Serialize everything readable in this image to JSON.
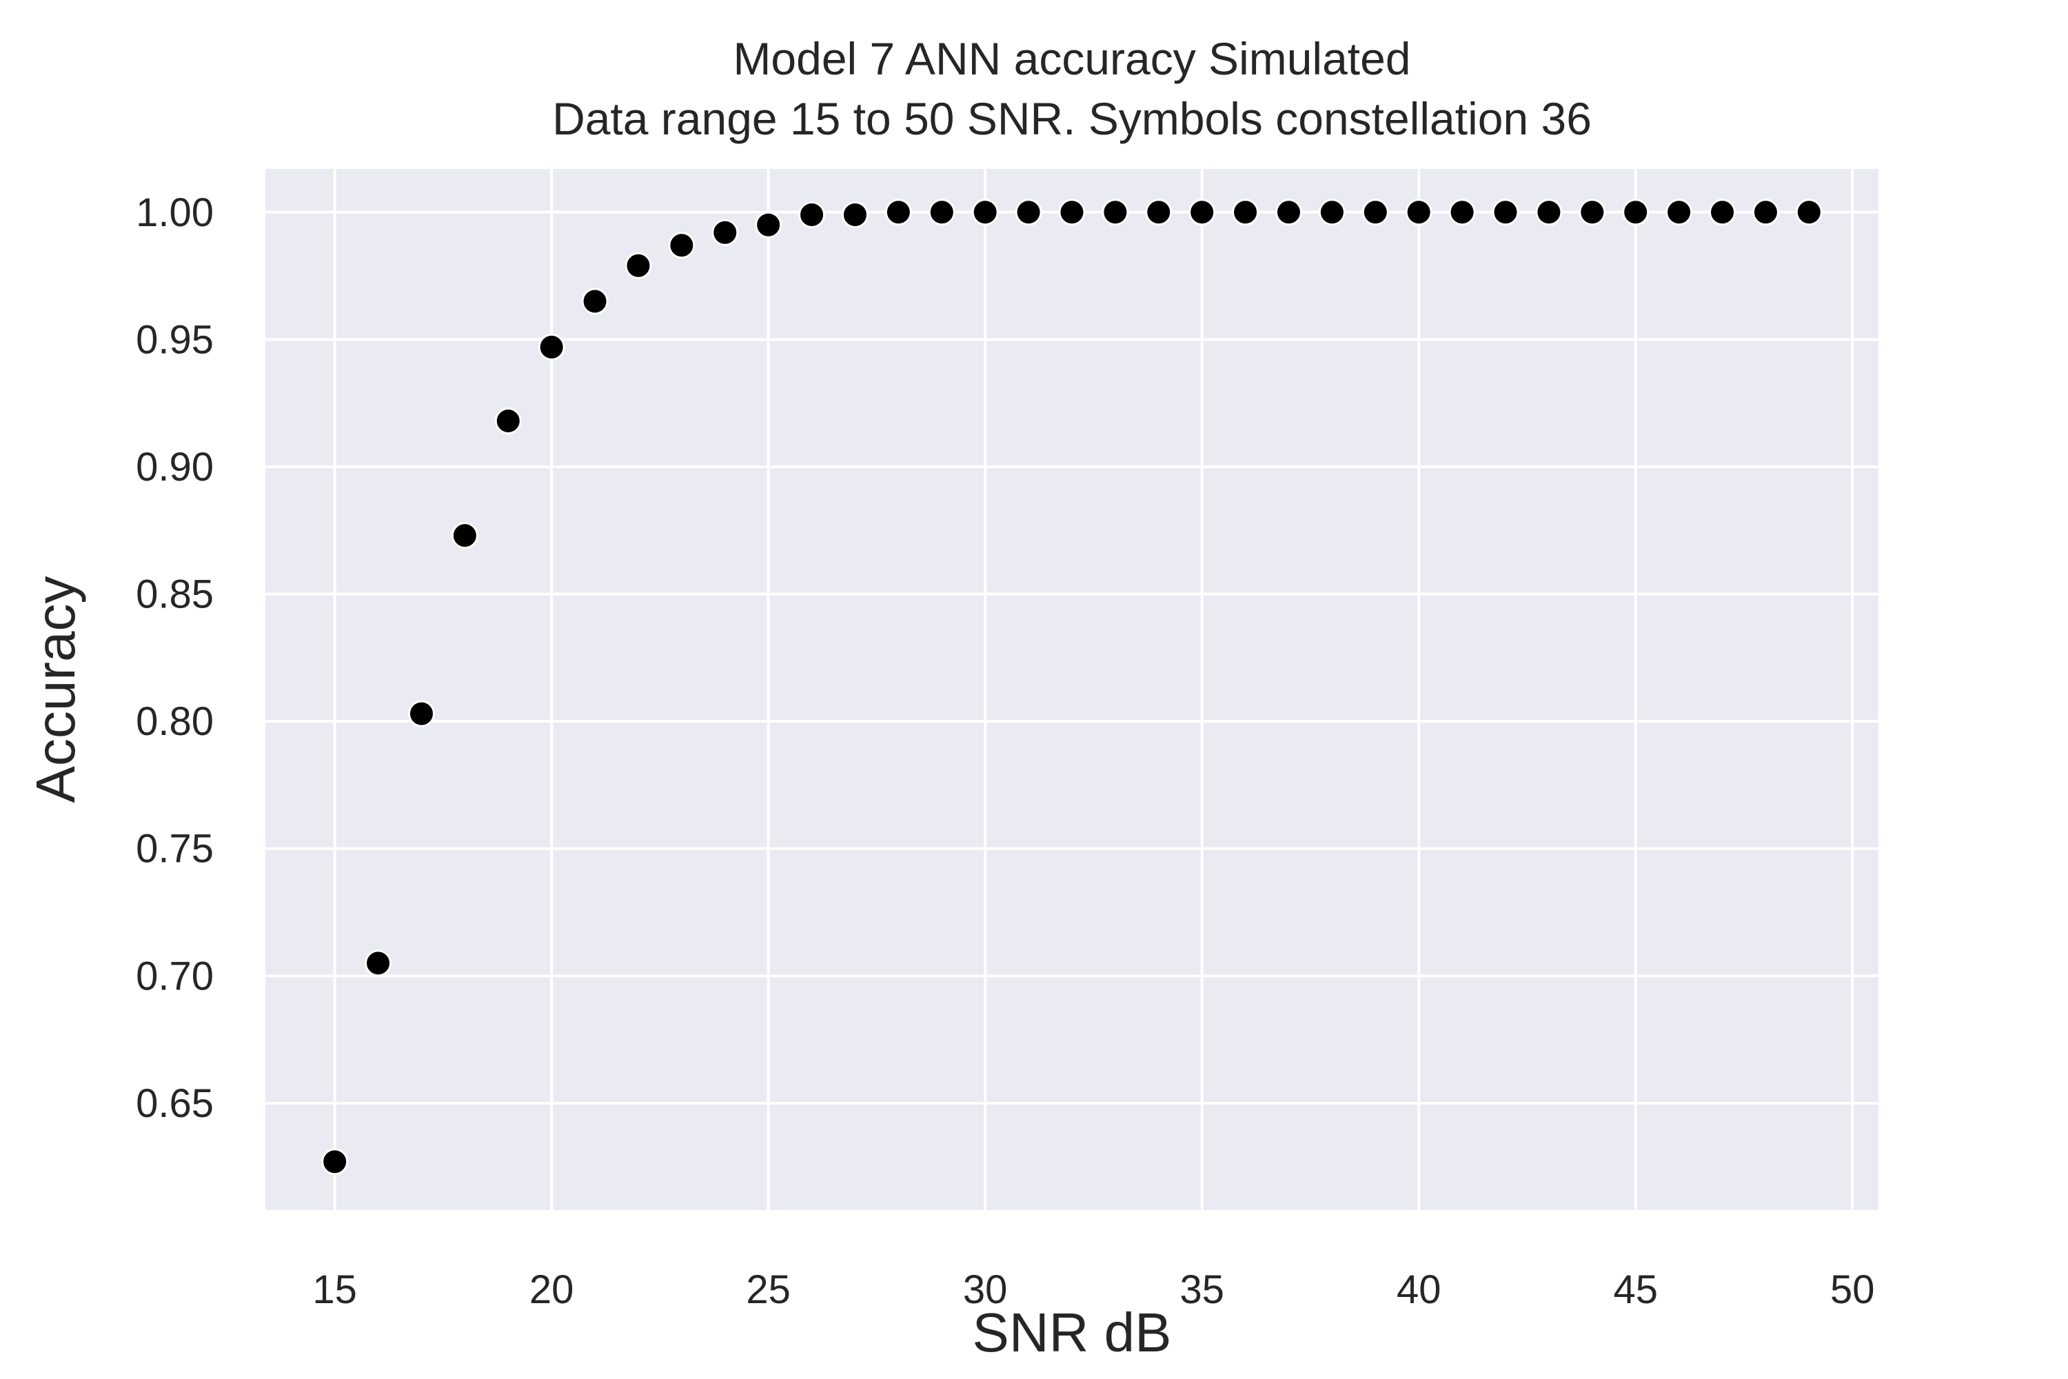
{
  "chart_data": {
    "type": "scatter",
    "title": [
      "Model 7 ANN accuracy Simulated",
      "Data range 15 to 50 SNR. Symbols constellation 36"
    ],
    "xlabel": "SNR dB",
    "ylabel": "Accuracy",
    "xlim": [
      13.4,
      50.6
    ],
    "ylim": [
      0.608,
      1.017
    ],
    "xticks": [
      15,
      20,
      25,
      30,
      35,
      40,
      45,
      50
    ],
    "yticks": [
      0.65,
      0.7,
      0.75,
      0.8,
      0.85,
      0.9,
      0.95,
      1.0
    ],
    "grid": true,
    "legend": "none",
    "series": [
      {
        "color": "#000000",
        "x": [
          15,
          16,
          17,
          18,
          19,
          20,
          21,
          22,
          23,
          24,
          25,
          26,
          27,
          28,
          29,
          30,
          31,
          32,
          33,
          34,
          35,
          36,
          37,
          38,
          39,
          40,
          41,
          42,
          43,
          44,
          45,
          46,
          47,
          48,
          49
        ],
        "y": [
          0.627,
          0.705,
          0.803,
          0.873,
          0.918,
          0.947,
          0.965,
          0.979,
          0.987,
          0.992,
          0.995,
          0.999,
          0.999,
          1.0,
          1.0,
          1.0,
          1.0,
          1.0,
          1.0,
          1.0,
          1.0,
          1.0,
          1.0,
          1.0,
          1.0,
          1.0,
          1.0,
          1.0,
          1.0,
          1.0,
          1.0,
          1.0,
          1.0,
          1.0,
          1.0
        ]
      }
    ]
  },
  "colors": {
    "plot_background": "#eaeaf2",
    "grid": "#ffffff",
    "marker": "#000000",
    "text": "#262626"
  }
}
